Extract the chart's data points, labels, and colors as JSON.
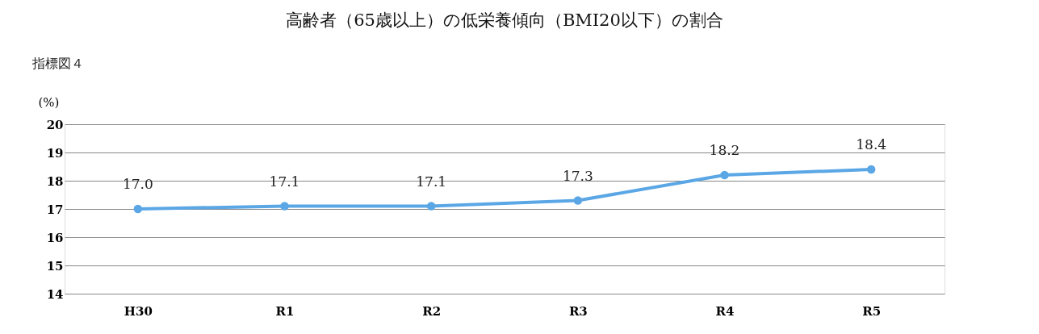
{
  "chart_data": {
    "type": "line",
    "title": "高齢者（65歳以上）の低栄養傾向（BMI20以下）の割合",
    "ylabel": "(%)",
    "annotations": [
      "指標図４"
    ],
    "categories": [
      "H30",
      "R1",
      "R2",
      "R3",
      "R4",
      "R5"
    ],
    "series": [
      {
        "color": "#5ba7e6",
        "values": [
          17.0,
          17.1,
          17.1,
          17.3,
          18.2,
          18.4
        ]
      }
    ],
    "value_labels": [
      "17.0",
      "17.1",
      "17.1",
      "17.3",
      "18.2",
      "18.4"
    ],
    "ylim": [
      14,
      20
    ],
    "yticks": [
      14,
      15,
      16,
      17,
      18,
      19,
      20
    ],
    "grid": "y",
    "marker": "circle",
    "line_style": "solid",
    "legend": false
  }
}
